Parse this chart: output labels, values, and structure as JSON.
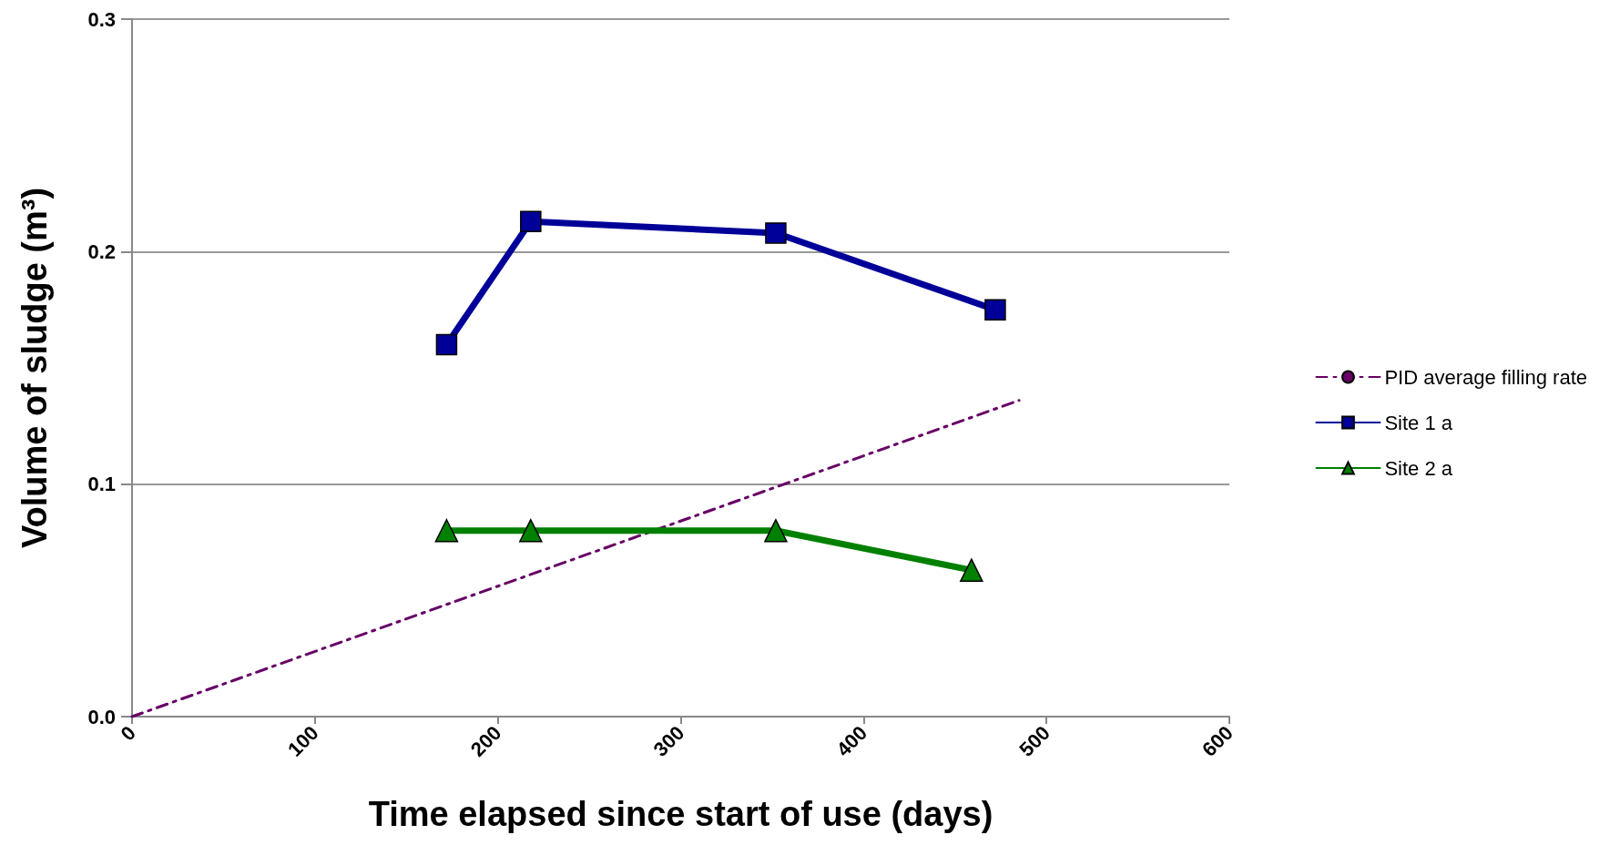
{
  "chart_data": {
    "type": "line",
    "xlabel": "Time elapsed since start of use (days)",
    "ylabel": "Volume of sludge (m³)",
    "xlim": [
      0,
      600
    ],
    "xticks": [
      0,
      100,
      200,
      300,
      400,
      500,
      600
    ],
    "ylim": [
      0,
      0.3
    ],
    "yticks": [
      {
        "value": 0,
        "label": "0.0"
      },
      {
        "value": 0.1,
        "label": "0.1"
      },
      {
        "value": 0.2,
        "label": "0.2"
      },
      {
        "value": 0.3,
        "label": "0.3"
      }
    ],
    "grid": "y",
    "legend": "right",
    "series": [
      {
        "name": "PID average filling rate",
        "color": "#660066",
        "x": [
          0,
          485
        ],
        "values": [
          0,
          0.136
        ],
        "marker": "none",
        "line_style": "dashed"
      },
      {
        "name": "Site 1 a",
        "color": "#000099",
        "x": [
          172,
          218,
          352,
          472
        ],
        "values": [
          0.16,
          0.213,
          0.208,
          0.175
        ],
        "marker": "square",
        "line_style": "solid"
      },
      {
        "name": "Site 2 a",
        "color": "#008000",
        "x": [
          172,
          218,
          352,
          459
        ],
        "values": [
          0.08,
          0.08,
          0.08,
          0.063
        ],
        "marker": "triangle",
        "line_style": "solid"
      }
    ]
  }
}
